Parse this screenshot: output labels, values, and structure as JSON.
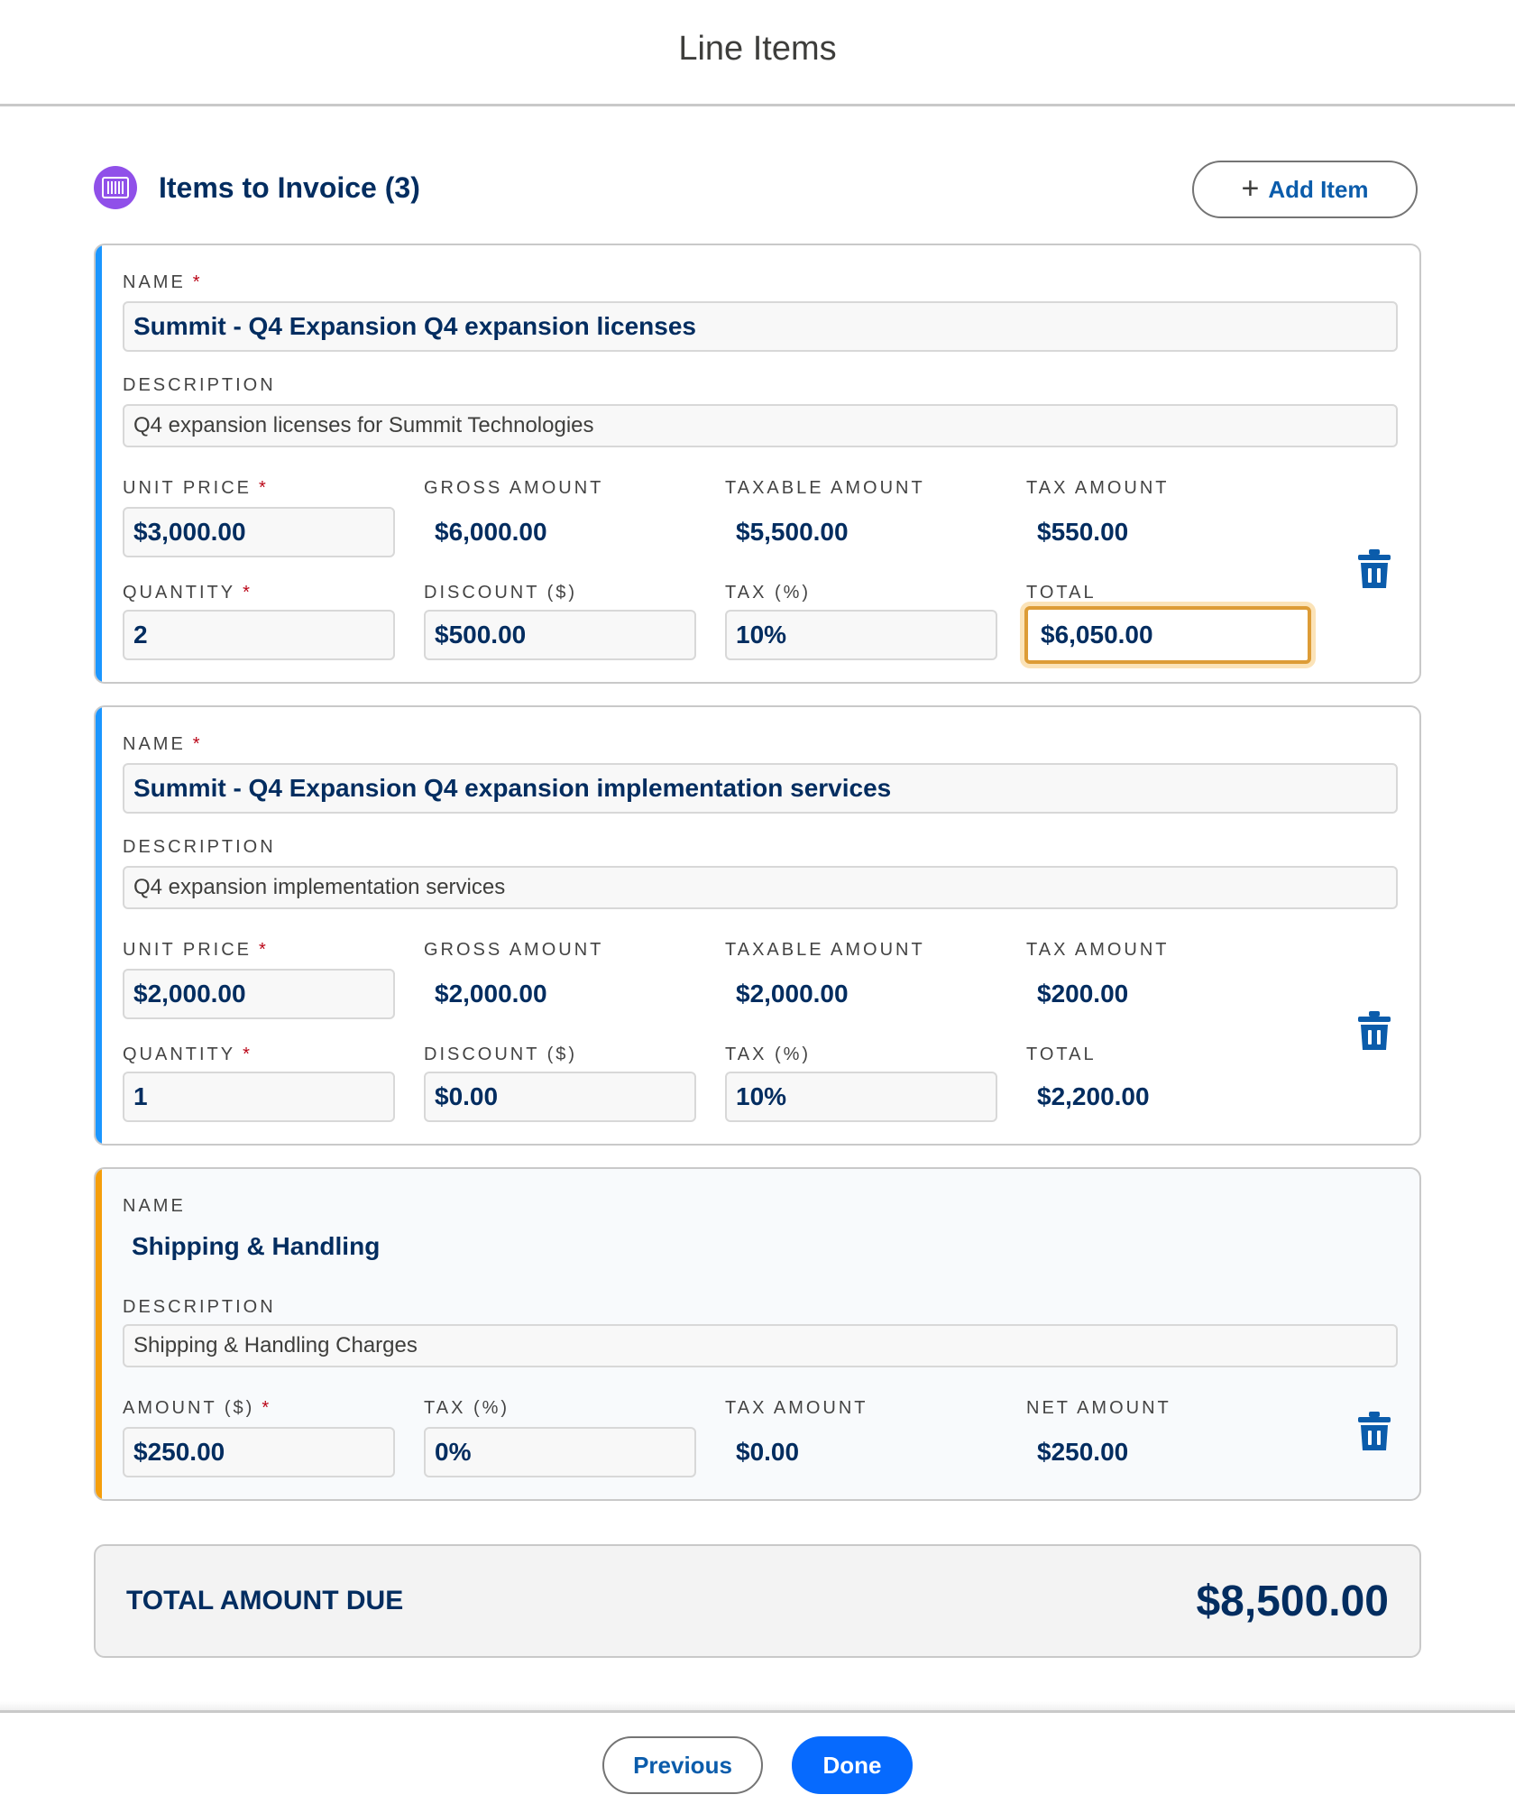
{
  "modal": {
    "title": "Line Items"
  },
  "section": {
    "title": "Items to Invoice (3)",
    "icon": "product-barcode-icon",
    "add_label": "Add Item"
  },
  "items": [
    {
      "name_label": "NAME",
      "name": "Summit - Q4 Expansion Q4 expansion licenses",
      "description_label": "DESCRIPTION",
      "description": "Q4 expansion licenses for Summit Technologies",
      "unit_price_label": "UNIT PRICE",
      "unit_price": "$3,000.00",
      "gross_amount_label": "GROSS AMOUNT",
      "gross_amount": "$6,000.00",
      "taxable_amount_label": "TAXABLE AMOUNT",
      "taxable_amount": "$5,500.00",
      "tax_amount_label": "TAX AMOUNT",
      "tax_amount": "$550.00",
      "quantity_label": "QUANTITY",
      "quantity": "2",
      "discount_label": "DISCOUNT ($)",
      "discount": "$500.00",
      "tax_pct_label": "TAX (%)",
      "tax_pct": "10%",
      "total_label": "TOTAL",
      "total": "$6,050.00"
    },
    {
      "name_label": "NAME",
      "name": "Summit - Q4 Expansion Q4 expansion implementation services",
      "description_label": "DESCRIPTION",
      "description": "Q4 expansion implementation services",
      "unit_price_label": "UNIT PRICE",
      "unit_price": "$2,000.00",
      "gross_amount_label": "GROSS AMOUNT",
      "gross_amount": "$2,000.00",
      "taxable_amount_label": "TAXABLE AMOUNT",
      "taxable_amount": "$2,000.00",
      "tax_amount_label": "TAX AMOUNT",
      "tax_amount": "$200.00",
      "quantity_label": "QUANTITY",
      "quantity": "1",
      "discount_label": "DISCOUNT ($)",
      "discount": "$0.00",
      "tax_pct_label": "TAX (%)",
      "tax_pct": "10%",
      "total_label": "TOTAL",
      "total": "$2,200.00"
    }
  ],
  "shipping": {
    "name_label": "NAME",
    "name": "Shipping & Handling",
    "description_label": "DESCRIPTION",
    "description": "Shipping & Handling Charges",
    "amount_label": "AMOUNT ($)",
    "amount": "$250.00",
    "tax_pct_label": "TAX (%)",
    "tax_pct": "0%",
    "tax_amount_label": "TAX AMOUNT",
    "tax_amount": "$0.00",
    "net_amount_label": "NET AMOUNT",
    "net_amount": "$250.00"
  },
  "required_marker": "*",
  "summary": {
    "label": "TOTAL AMOUNT DUE",
    "value": "$8,500.00"
  },
  "footer": {
    "previous_label": "Previous",
    "done_label": "Done"
  },
  "colors": {
    "accent_blue": "#1b96ff",
    "accent_orange": "#f59e0b",
    "brand": "#066afe",
    "focus": "#dd9c36",
    "icon_purple": "#9050e9"
  }
}
